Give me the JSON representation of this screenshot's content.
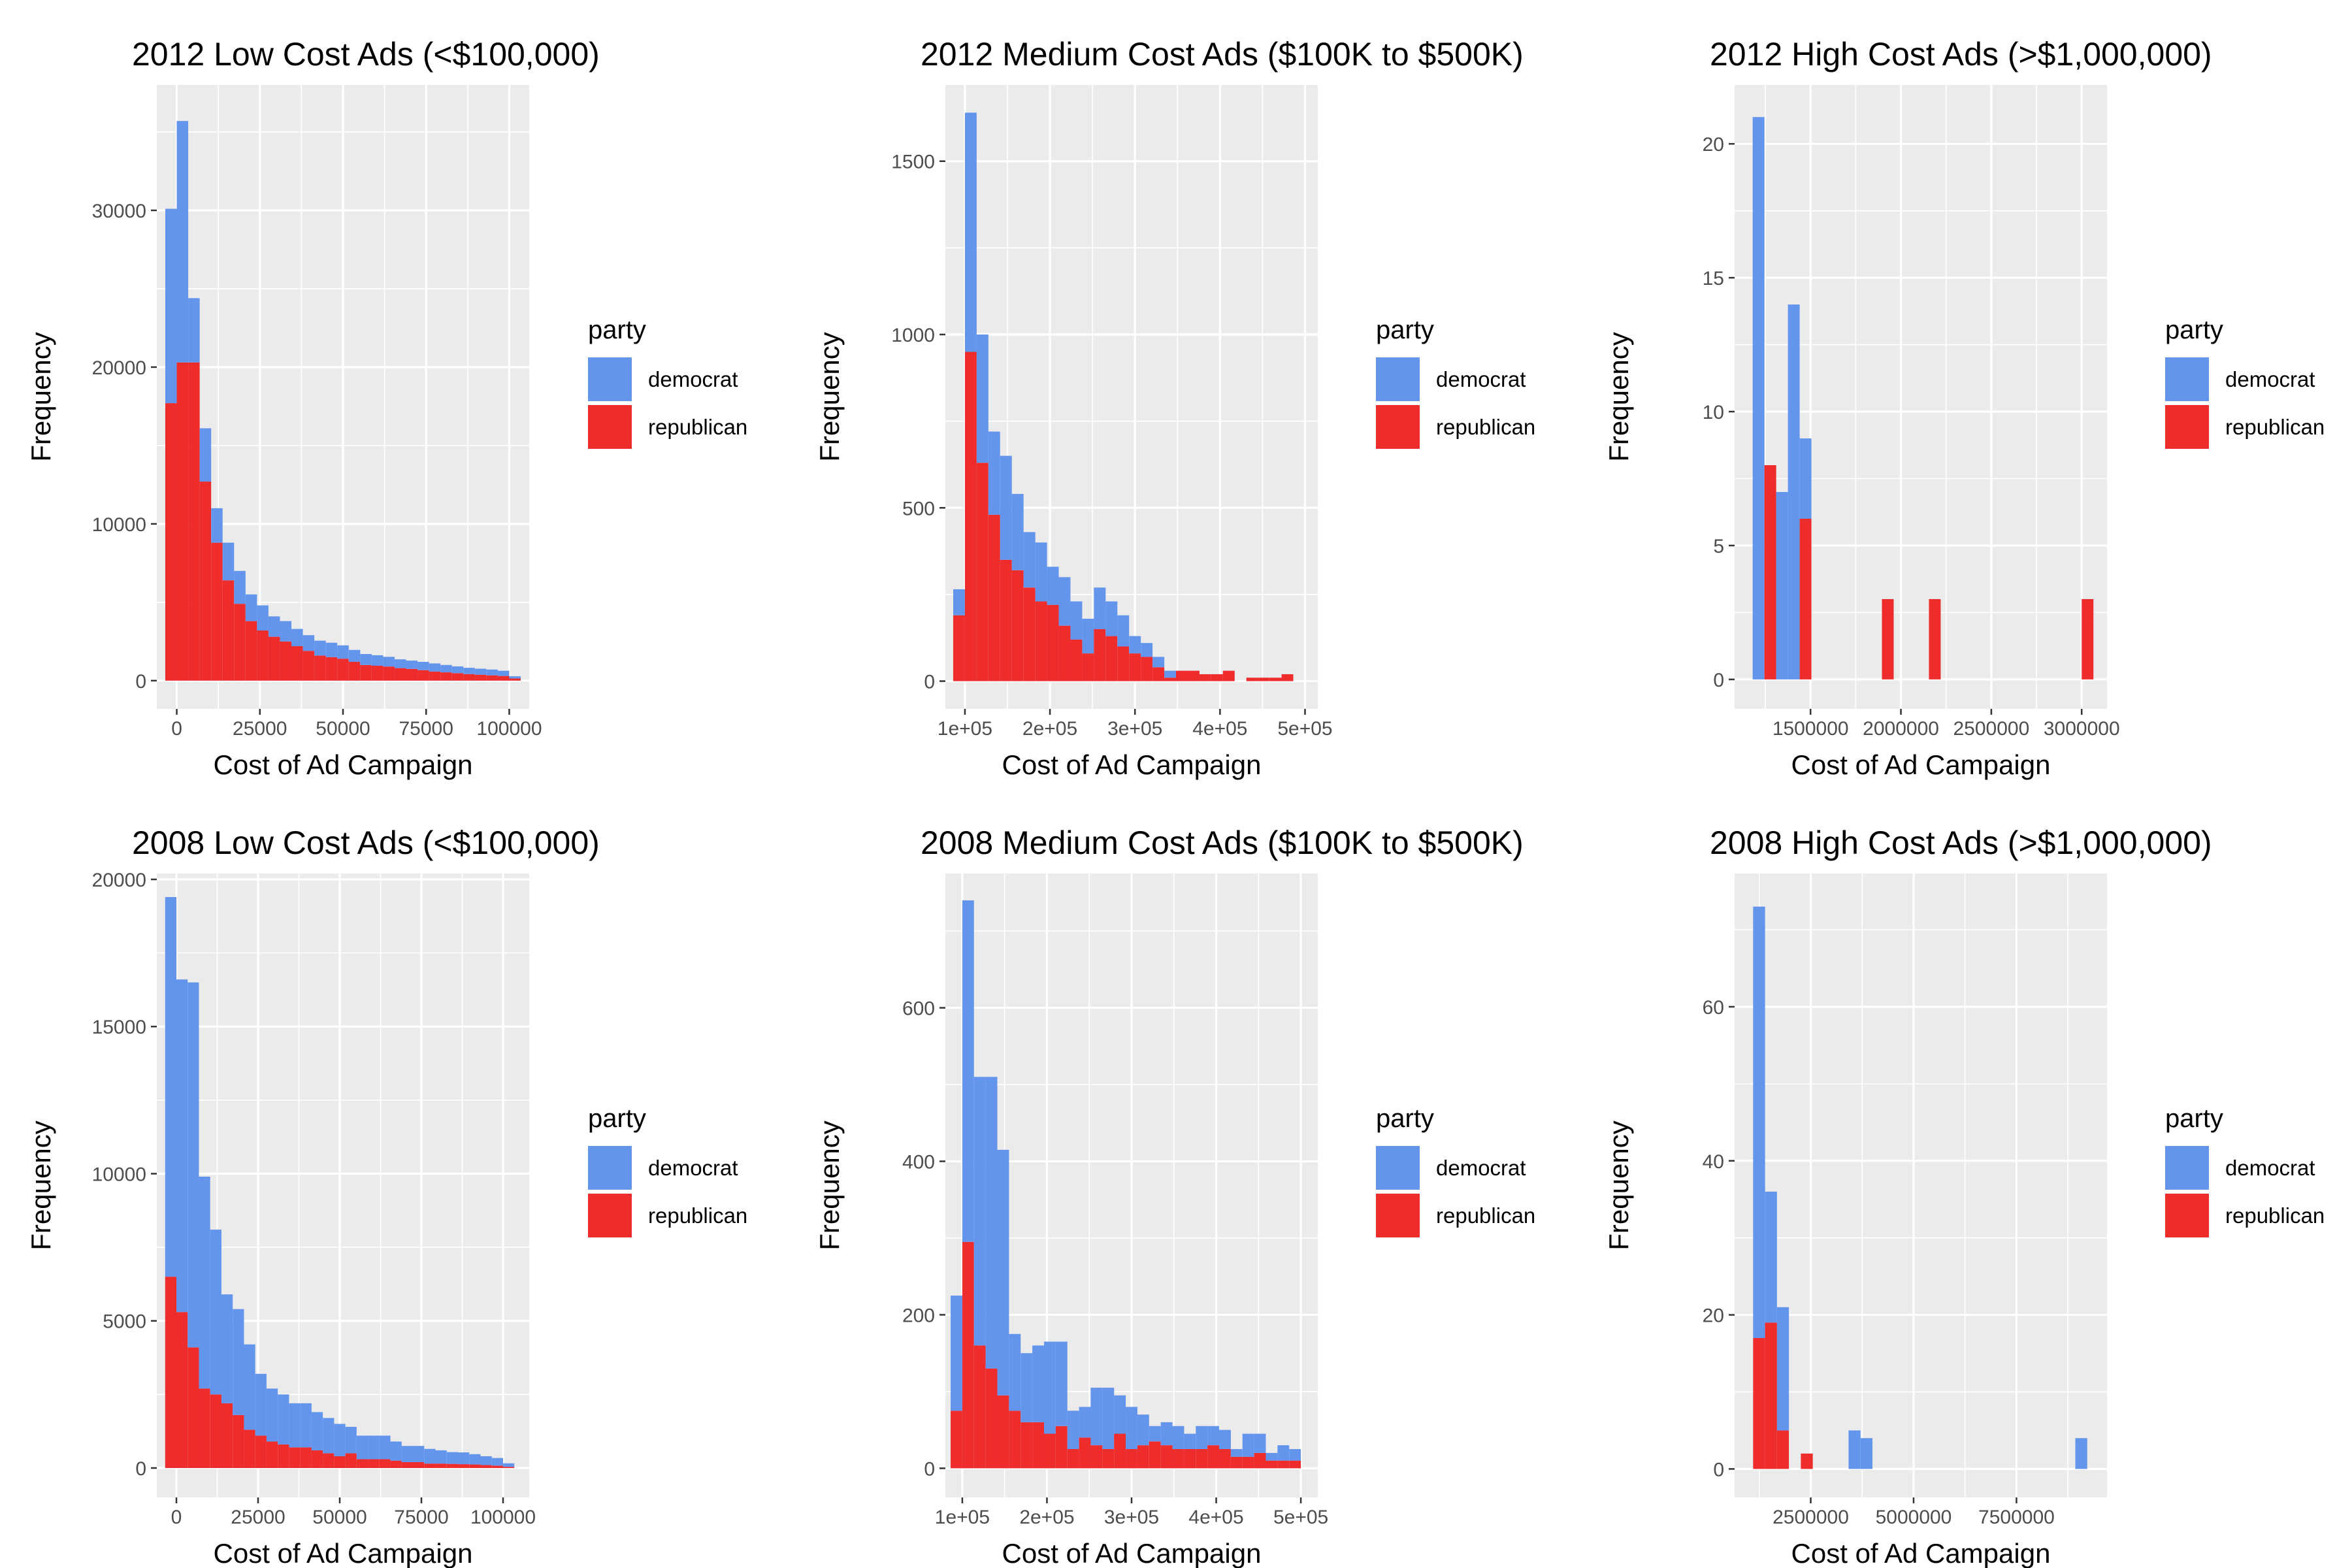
{
  "colors": {
    "democrat": "#6495ed",
    "republican": "#ee2c2c",
    "panel": "#ebebeb",
    "grid": "#ffffff",
    "tick": "#333333"
  },
  "legend": {
    "title": "party",
    "labels": [
      "democrat",
      "republican"
    ]
  },
  "chart_data": [
    {
      "type": "bar",
      "stacked": true,
      "title": "2012 Low Cost Ads (<$100,000)",
      "xlabel": "Cost of Ad Campaign",
      "ylabel": "Frequency",
      "xlim": [
        -6000,
        106000
      ],
      "ylim": [
        -1800,
        38000
      ],
      "x_breaks": [
        0,
        25000,
        50000,
        75000,
        100000
      ],
      "x_tick_labels": [
        "0",
        "25000",
        "50000",
        "75000",
        "100000"
      ],
      "y_breaks": [
        0,
        10000,
        20000,
        30000
      ],
      "y_tick_labels": [
        "0",
        "10000",
        "20000",
        "30000"
      ],
      "bin_width": 3448,
      "x": [
        -1724,
        1724,
        5172,
        8620,
        12068,
        15516,
        18964,
        22412,
        25860,
        29308,
        32756,
        36204,
        39652,
        43100,
        46548,
        49996,
        53444,
        56892,
        60340,
        63788,
        67236,
        70684,
        74132,
        77580,
        81028,
        84476,
        87924,
        91372,
        94820,
        98268,
        101716
      ],
      "series": [
        {
          "name": "democrat",
          "values": [
            12400,
            15400,
            4100,
            3400,
            2200,
            2400,
            2100,
            1700,
            1600,
            1300,
            1300,
            1100,
            1000,
            950,
            920,
            850,
            760,
            700,
            670,
            620,
            560,
            530,
            530,
            520,
            470,
            430,
            400,
            380,
            370,
            330,
            140
          ]
        },
        {
          "name": "republican",
          "values": [
            17700,
            20300,
            20300,
            12700,
            8800,
            6400,
            4900,
            3800,
            3200,
            2800,
            2500,
            2200,
            1900,
            1600,
            1500,
            1400,
            1200,
            1000,
            950,
            900,
            800,
            750,
            670,
            580,
            530,
            480,
            420,
            380,
            340,
            300,
            140
          ]
        }
      ]
    },
    {
      "type": "bar",
      "stacked": true,
      "title": "2012 Medium Cost Ads ($100K to $500K)",
      "xlabel": "Cost of Ad Campaign",
      "ylabel": "Frequency",
      "xlim": [
        77000,
        515000
      ],
      "ylim": [
        -80,
        1720
      ],
      "x_breaks": [
        100000,
        200000,
        300000,
        400000,
        500000
      ],
      "x_tick_labels": [
        "1e+05",
        "2e+05",
        "3e+05",
        "4e+05",
        "5e+05"
      ],
      "y_breaks": [
        0,
        500,
        1000,
        1500
      ],
      "y_tick_labels": [
        "0",
        "500",
        "1000",
        "1500"
      ],
      "bin_width": 13793,
      "x": [
        93103,
        106896,
        120689,
        134482,
        148275,
        162068,
        175861,
        189654,
        203447,
        217240,
        231033,
        244826,
        258619,
        272412,
        286205,
        299998,
        313791,
        327584,
        341377,
        355170,
        368963,
        382756,
        396549,
        410342,
        424135,
        437928,
        451721,
        465514,
        479307
      ],
      "series": [
        {
          "name": "democrat",
          "values": [
            75,
            690,
            370,
            240,
            300,
            220,
            160,
            170,
            110,
            140,
            110,
            100,
            120,
            100,
            90,
            50,
            40,
            30,
            20,
            0,
            0,
            0,
            0,
            0,
            0,
            0,
            0,
            0,
            0
          ]
        },
        {
          "name": "republican",
          "values": [
            190,
            950,
            630,
            480,
            350,
            320,
            270,
            230,
            220,
            160,
            120,
            80,
            150,
            130,
            100,
            80,
            70,
            40,
            10,
            30,
            30,
            20,
            20,
            30,
            0,
            10,
            10,
            10,
            20
          ]
        }
      ]
    },
    {
      "type": "bar",
      "stacked": true,
      "title": "2012 High Cost Ads (>$1,000,000)",
      "xlabel": "Cost of Ad Campaign",
      "ylabel": "Frequency",
      "xlim": [
        1080000,
        3140000
      ],
      "ylim": [
        -1.1,
        22.2
      ],
      "x_breaks": [
        1500000,
        2000000,
        2500000,
        3000000
      ],
      "x_tick_labels": [
        "1500000",
        "2000000",
        "2500000",
        "3000000"
      ],
      "y_breaks": [
        0,
        5,
        10,
        15,
        20
      ],
      "y_tick_labels": [
        "0",
        "5",
        "10",
        "15",
        "20"
      ],
      "bin_width": 65000,
      "x": [
        1212500,
        1277500,
        1342500,
        1407500,
        1472500,
        1537500,
        1602500,
        1667500,
        1732500,
        1797500,
        1862500,
        1927500,
        1992500,
        2057500,
        2122500,
        2187500,
        2252500,
        2317500,
        2382500,
        2447500,
        2512500,
        2577500,
        2642500,
        2707500,
        2772500,
        2837500,
        2902500,
        2967500,
        3032500
      ],
      "series": [
        {
          "name": "democrat",
          "values": [
            21,
            0,
            7,
            14,
            3,
            0,
            0,
            0,
            0,
            0,
            0,
            0,
            0,
            0,
            0,
            0,
            0,
            0,
            0,
            0,
            0,
            0,
            0,
            0,
            0,
            0,
            0,
            0,
            0
          ]
        },
        {
          "name": "republican",
          "values": [
            0,
            8,
            0,
            0,
            6,
            0,
            0,
            0,
            0,
            0,
            0,
            3,
            0,
            0,
            0,
            3,
            0,
            0,
            0,
            0,
            0,
            0,
            0,
            0,
            0,
            0,
            0,
            0,
            3
          ]
        }
      ]
    },
    {
      "type": "bar",
      "stacked": true,
      "title": "2008 Low Cost Ads (<$100,000)",
      "xlabel": "Cost of Ad Campaign",
      "ylabel": "Frequency",
      "xlim": [
        -6000,
        108000
      ],
      "ylim": [
        -1000,
        20200
      ],
      "x_breaks": [
        0,
        25000,
        50000,
        75000,
        100000
      ],
      "x_tick_labels": [
        "0",
        "25000",
        "50000",
        "75000",
        "100000"
      ],
      "y_breaks": [
        0,
        5000,
        10000,
        15000,
        20000
      ],
      "y_tick_labels": [
        "0",
        "5000",
        "10000",
        "15000",
        "20000"
      ],
      "bin_width": 3448,
      "x": [
        -1724,
        1724,
        5172,
        8620,
        12068,
        15516,
        18964,
        22412,
        25860,
        29308,
        32756,
        36204,
        39652,
        43100,
        46548,
        49996,
        53444,
        56892,
        60340,
        63788,
        67236,
        70684,
        74132,
        77580,
        81028,
        84476,
        87924,
        91372,
        94820,
        98268,
        101716
      ],
      "series": [
        {
          "name": "democrat",
          "values": [
            12900,
            11300,
            12400,
            7200,
            5600,
            3700,
            3600,
            2900,
            2100,
            1800,
            1700,
            1500,
            1500,
            1300,
            1200,
            1100,
            900,
            800,
            800,
            800,
            650,
            550,
            550,
            500,
            450,
            400,
            400,
            350,
            300,
            260,
            120
          ]
        },
        {
          "name": "republican",
          "values": [
            6500,
            5300,
            4100,
            2700,
            2500,
            2200,
            1800,
            1300,
            1100,
            900,
            800,
            700,
            700,
            600,
            500,
            400,
            500,
            300,
            300,
            300,
            250,
            200,
            200,
            150,
            150,
            140,
            130,
            120,
            100,
            80,
            40
          ]
        }
      ]
    },
    {
      "type": "bar",
      "stacked": true,
      "title": "2008 Medium Cost Ads ($100K to $500K)",
      "xlabel": "Cost of Ad Campaign",
      "ylabel": "Frequency",
      "xlim": [
        80000,
        520000
      ],
      "ylim": [
        -38,
        775
      ],
      "x_breaks": [
        100000,
        200000,
        300000,
        400000,
        500000
      ],
      "x_tick_labels": [
        "1e+05",
        "2e+05",
        "3e+05",
        "4e+05",
        "5e+05"
      ],
      "y_breaks": [
        0,
        200,
        400,
        600
      ],
      "y_tick_labels": [
        "0",
        "200",
        "400",
        "600"
      ],
      "bin_width": 13793,
      "x": [
        93103,
        106896,
        120689,
        134482,
        148275,
        162068,
        175861,
        189654,
        203447,
        217240,
        231033,
        244826,
        258619,
        272412,
        286205,
        299998,
        313791,
        327584,
        341377,
        355170,
        368963,
        382756,
        396549,
        410342,
        424135,
        437928,
        451721,
        465514,
        479307,
        493100
      ],
      "series": [
        {
          "name": "democrat",
          "values": [
            150,
            445,
            350,
            380,
            320,
            100,
            90,
            100,
            120,
            110,
            50,
            40,
            75,
            80,
            50,
            55,
            40,
            20,
            30,
            30,
            20,
            30,
            25,
            25,
            10,
            30,
            25,
            10,
            20,
            15
          ]
        },
        {
          "name": "republican",
          "values": [
            75,
            295,
            160,
            130,
            95,
            75,
            60,
            60,
            45,
            55,
            25,
            40,
            30,
            25,
            45,
            25,
            30,
            35,
            30,
            25,
            25,
            25,
            30,
            25,
            15,
            15,
            20,
            10,
            10,
            10
          ]
        }
      ]
    },
    {
      "type": "bar",
      "stacked": true,
      "title": "2008 High Cost Ads (>$1,000,000)",
      "xlabel": "Cost of Ad Campaign",
      "ylabel": "Frequency",
      "xlim": [
        650000,
        9700000
      ],
      "ylim": [
        -3.7,
        77.3
      ],
      "x_breaks": [
        2500000,
        5000000,
        7500000
      ],
      "x_tick_labels": [
        "2500000",
        "5000000",
        "7500000"
      ],
      "y_breaks": [
        0,
        20,
        40,
        60
      ],
      "y_tick_labels": [
        "0",
        "20",
        "40",
        "60"
      ],
      "bin_width": 290000,
      "x": [
        1245000,
        1535000,
        1825000,
        2115000,
        2405000,
        2695000,
        2985000,
        3275000,
        3565000,
        3855000,
        4145000,
        4435000,
        4725000,
        5015000,
        5305000,
        5595000,
        5885000,
        6175000,
        6465000,
        6755000,
        7045000,
        7335000,
        7625000,
        7915000,
        8205000,
        8495000,
        8785000,
        9075000
      ],
      "series": [
        {
          "name": "democrat",
          "values": [
            56,
            17,
            16,
            0,
            0,
            0,
            0,
            0,
            5,
            4,
            0,
            0,
            0,
            0,
            0,
            0,
            0,
            0,
            0,
            0,
            0,
            0,
            0,
            0,
            0,
            0,
            0,
            4
          ]
        },
        {
          "name": "republican",
          "values": [
            17,
            19,
            5,
            0,
            2,
            0,
            0,
            0,
            0,
            0,
            0,
            0,
            0,
            0,
            0,
            0,
            0,
            0,
            0,
            0,
            0,
            0,
            0,
            0,
            0,
            0,
            0,
            0
          ]
        }
      ]
    }
  ]
}
